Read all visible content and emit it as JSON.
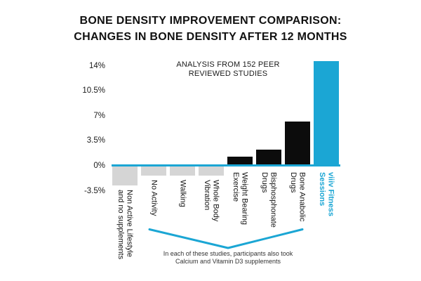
{
  "title": {
    "line1": "BONE DENSITY IMPROVEMENT COMPARISON:",
    "line2": "CHANGES IN BONE DENSITY AFTER 12 MONTHS"
  },
  "colors": {
    "cyan": "#1BA6D4",
    "black": "#0C0C0C",
    "gray": "#D5D5D5",
    "title_text": "#111111"
  },
  "chart_data": {
    "type": "bar",
    "title": "BONE DENSITY IMPROVEMENT COMPARISON: CHANGES IN BONE DENSITY AFTER 12 MONTHS",
    "annotation": "ANALYSIS FROM 152 PEER\nREVIEWED STUDIES",
    "categories": [
      "Non Active Lifestyle\nand no supplements",
      "No Activity",
      "Walking",
      "Whole Body\nVibration",
      "Weight Bearing\nExercise",
      "Bisphosphonate\nDrugs",
      "Bone Anabolic\nDrugs",
      "viiiv Fitness\nSessions"
    ],
    "values": [
      -2.6,
      -1.3,
      -1.3,
      -1.3,
      1.1,
      2.1,
      6.0,
      14.4
    ],
    "unit": "%",
    "bar_colors": [
      "gray",
      "gray",
      "gray",
      "gray",
      "black",
      "black",
      "black",
      "cyan"
    ],
    "highlight_index": 7,
    "yticks": [
      {
        "label": "14%",
        "value": 14
      },
      {
        "label": "10.5%",
        "value": 10.5
      },
      {
        "label": "7%",
        "value": 7
      },
      {
        "label": "3.5%",
        "value": 3.5
      },
      {
        "label": "0%",
        "value": 0
      },
      {
        "label": "-3.5%",
        "value": -3.5
      }
    ],
    "ylim": [
      -3.5,
      14.5
    ],
    "xlabel": "",
    "ylabel": "",
    "grid": false,
    "legend": false,
    "bracket_note": "In each of these studies, participants also took\nCalcium and Vitamin D3 supplements"
  }
}
